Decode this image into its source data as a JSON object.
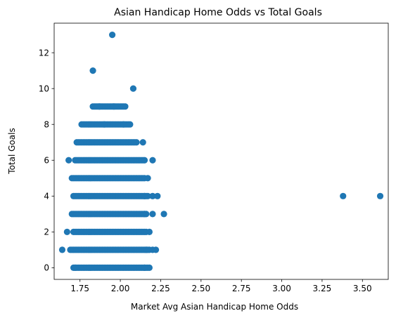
{
  "chart_data": {
    "type": "scatter",
    "title": "Asian Handicap Home Odds vs Total Goals",
    "xlabel": "Market Avg Asian Handicap Home Odds",
    "ylabel": "Total Goals",
    "xlim": [
      1.59,
      3.66
    ],
    "ylim": [
      -0.65,
      13.65
    ],
    "xticks": [
      1.75,
      2.0,
      2.25,
      2.5,
      2.75,
      3.0,
      3.25,
      3.5
    ],
    "xtick_labels": [
      "1.75",
      "2.00",
      "2.25",
      "2.50",
      "2.75",
      "3.00",
      "3.25",
      "3.50"
    ],
    "yticks": [
      0,
      2,
      4,
      6,
      8,
      10,
      12
    ],
    "ytick_labels": [
      "0",
      "2",
      "4",
      "6",
      "8",
      "10",
      "12"
    ],
    "grid": false,
    "marker_color": "#1f77b4",
    "bands": [
      {
        "y": 0,
        "xmin": 1.71,
        "xmax": 2.17
      },
      {
        "y": 1,
        "xmin": 1.69,
        "xmax": 2.18
      },
      {
        "y": 2,
        "xmin": 1.71,
        "xmax": 2.16
      },
      {
        "y": 3,
        "xmin": 1.7,
        "xmax": 2.16
      },
      {
        "y": 4,
        "xmin": 1.71,
        "xmax": 2.17
      },
      {
        "y": 5,
        "xmin": 1.71,
        "xmax": 2.15
      },
      {
        "y": 6,
        "xmin": 1.72,
        "xmax": 2.15
      },
      {
        "y": 7,
        "xmin": 1.73,
        "xmax": 2.1
      },
      {
        "y": 8,
        "xmin": 1.76,
        "xmax": 2.06
      },
      {
        "y": 9,
        "xmin": 1.83,
        "xmax": 2.03
      }
    ],
    "points": [
      {
        "x": 1.95,
        "y": 13
      },
      {
        "x": 1.83,
        "y": 11
      },
      {
        "x": 2.08,
        "y": 10
      },
      {
        "x": 1.87,
        "y": 9
      },
      {
        "x": 1.96,
        "y": 9
      },
      {
        "x": 1.9,
        "y": 8
      },
      {
        "x": 2.02,
        "y": 8
      },
      {
        "x": 2.14,
        "y": 7
      },
      {
        "x": 1.68,
        "y": 6
      },
      {
        "x": 2.2,
        "y": 6
      },
      {
        "x": 1.7,
        "y": 5
      },
      {
        "x": 2.17,
        "y": 5
      },
      {
        "x": 2.2,
        "y": 4
      },
      {
        "x": 2.23,
        "y": 4
      },
      {
        "x": 2.15,
        "y": 4
      },
      {
        "x": 3.38,
        "y": 4
      },
      {
        "x": 3.61,
        "y": 4
      },
      {
        "x": 2.27,
        "y": 3
      },
      {
        "x": 2.2,
        "y": 3
      },
      {
        "x": 2.15,
        "y": 3
      },
      {
        "x": 1.67,
        "y": 2
      },
      {
        "x": 2.18,
        "y": 2
      },
      {
        "x": 1.64,
        "y": 1
      },
      {
        "x": 2.22,
        "y": 1
      },
      {
        "x": 2.2,
        "y": 1
      },
      {
        "x": 2.16,
        "y": 1
      },
      {
        "x": 2.18,
        "y": 0
      },
      {
        "x": 2.15,
        "y": 0
      },
      {
        "x": 1.72,
        "y": 0
      }
    ]
  }
}
